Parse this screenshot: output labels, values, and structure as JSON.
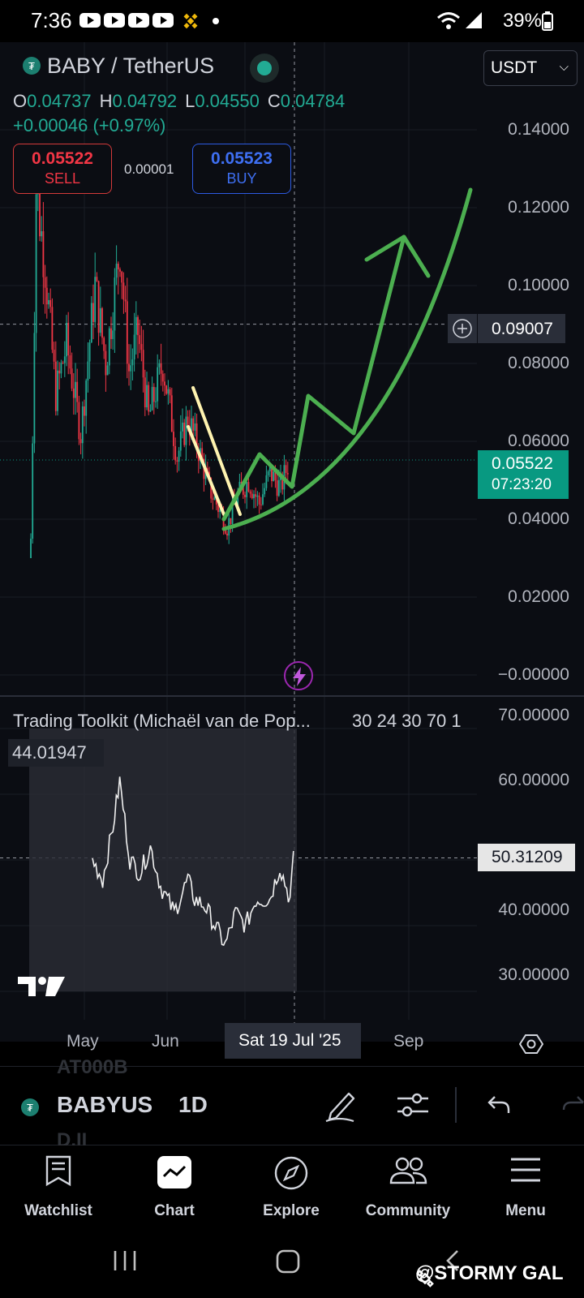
{
  "status_bar": {
    "time": "7:36",
    "battery": "39%"
  },
  "symbol": {
    "title": "BABY / TetherUS",
    "currency": "USDT"
  },
  "ohlc": {
    "o_label": "O",
    "o": "0.04737",
    "h_label": "H",
    "h": "0.04792",
    "l_label": "L",
    "l": "0.04550",
    "c_label": "C",
    "c": "0.04784",
    "change": "+0.00046 (+0.97%)"
  },
  "trade": {
    "sell_price": "0.05522",
    "sell_label": "SELL",
    "spread": "0.00001",
    "buy_price": "0.05523",
    "buy_label": "BUY"
  },
  "price_axis": [
    "0.14000",
    "0.12000",
    "0.10000",
    "0.08000",
    "0.06000",
    "0.04000",
    "0.02000",
    "−0.00000"
  ],
  "crosshair": {
    "price": "0.09007",
    "date": "Sat 19 Jul '25"
  },
  "last_price": {
    "price": "0.05522",
    "countdown": "07:23:20"
  },
  "indicator": {
    "title": "Trading Toolkit (Michaël van de Pop...",
    "params": "30 24 30 70 1",
    "value": "44.01947",
    "last": "50.31209",
    "axis": [
      "70.00000",
      "60.00000",
      "40.00000",
      "30.00000"
    ]
  },
  "time_axis": {
    "may": "May",
    "jun": "Jun",
    "sep": "Sep"
  },
  "toolbar": {
    "ghost_top": "AT000B",
    "symbol": "BABYUS",
    "interval": "1D",
    "ghost_bottom": "D.II"
  },
  "nav": {
    "watchlist": "Watchlist",
    "chart": "Chart",
    "explore": "Explore",
    "community": "Community",
    "menu": "Menu"
  },
  "watermark": "@STORMY GAL",
  "colors": {
    "up": "#22ab94",
    "down": "#f23645",
    "drawing_green": "#4caf50",
    "drawing_yellow": "#fff3b0",
    "background": "#0b0d13"
  },
  "chart_data": {
    "type": "candlestick",
    "price_range": [
      0,
      0.14
    ],
    "oscillator_range": [
      30,
      70
    ],
    "last_close": 0.05522,
    "crosshair_value": 0.09007,
    "oscillator_value": 44.01947,
    "oscillator_last": 50.31209
  }
}
